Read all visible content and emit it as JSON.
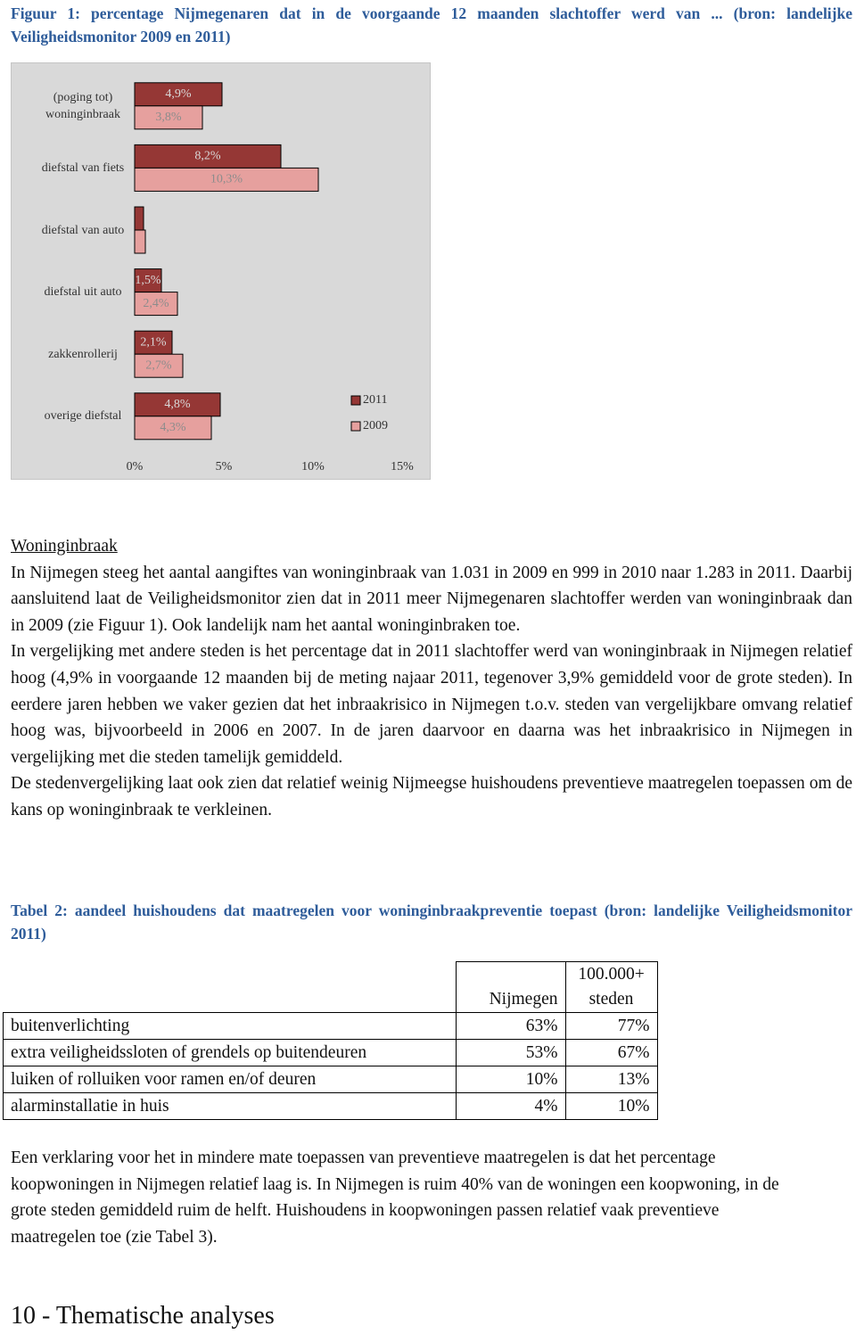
{
  "figure_caption": "Figuur 1: percentage Nijmegenaren dat in de voorgaande 12 maanden slachtoffer werd van ... (bron: landelijke Veiligheidsmonitor 2009 en 2011)",
  "chart_data": {
    "type": "bar",
    "orientation": "horizontal",
    "categories": [
      "(poging tot) woninginbraak",
      "diefstal van fiets",
      "diefstal van auto",
      "diefstal uit auto",
      "zakkenrollerij",
      "overige diefstal"
    ],
    "series": [
      {
        "name": "2011",
        "color": "#953735",
        "values": [
          4.9,
          8.2,
          0.5,
          1.5,
          2.1,
          4.8
        ],
        "value_labels": [
          "4,9%",
          "8,2%",
          null,
          "1,5%",
          "2,1%",
          "4,8%"
        ]
      },
      {
        "name": "2009",
        "color": "#e6a09e",
        "values": [
          3.8,
          10.3,
          0.6,
          2.4,
          2.7,
          4.3
        ],
        "value_labels": [
          "3,8%",
          "10,3%",
          null,
          "2,4%",
          "2,7%",
          "4,3%"
        ]
      }
    ],
    "xlim": [
      0,
      16
    ],
    "xticks": [
      {
        "value": 0,
        "label": "0%"
      },
      {
        "value": 5,
        "label": "5%"
      },
      {
        "value": 10,
        "label": "10%"
      },
      {
        "value": 15,
        "label": "15%"
      }
    ],
    "grid": false,
    "legend": "right"
  },
  "section": {
    "heading": "Woninginbraak",
    "paragraphs": [
      "In Nijmegen steeg het aantal aangiftes van woninginbraak van 1.031 in 2009 en 999 in 2010 naar 1.283 in 2011. Daarbij aansluitend laat de Veiligheidsmonitor zien dat in 2011 meer Nijmegenaren slachtoffer werden van woninginbraak dan in 2009 (zie Figuur 1). Ook landelijk nam het aantal woninginbraken toe.",
      "In vergelijking met andere steden is het percentage dat in 2011 slachtoffer werd van woninginbraak in Nijmegen relatief hoog (4,9% in voorgaande 12 maanden bij de meting najaar 2011, tegenover 3,9% gemiddeld voor de grote steden). In eerdere jaren hebben we vaker gezien dat het inbraakrisico in Nijmegen t.o.v. steden van vergelijkbare omvang relatief hoog was, bijvoorbeeld in 2006 en 2007. In de jaren daarvoor en daarna was het inbraakrisico in Nijmegen in vergelijking met die steden tamelijk gemiddeld.",
      "De stedenvergelijking laat ook zien dat relatief weinig Nijmeegse huishoudens preventieve maatregelen toepassen om de kans op woninginbraak te verkleinen."
    ]
  },
  "table": {
    "caption": "Tabel 2: aandeel huishoudens dat maatregelen voor woninginbraakpreventie toepast (bron: landelijke Veiligheidsmonitor 2011)",
    "header": [
      "Nijmegen",
      "100.000+ steden"
    ],
    "rows": [
      [
        "buitenverlichting",
        "63%",
        "77%"
      ],
      [
        "extra veiligheidssloten of grendels op buitendeuren",
        "53%",
        "67%"
      ],
      [
        "luiken of rolluiken voor ramen en/of deuren",
        "10%",
        "13%"
      ],
      [
        "alarminstallatie in huis",
        "4%",
        "10%"
      ]
    ]
  },
  "closing_paragraph": "Een verklaring voor het in mindere mate toepassen van preventieve maatregelen is dat het percentage koopwoningen in Nijmegen relatief laag is. In Nijmegen is ruim 40% van de woningen een koopwoning, in de grote steden gemiddeld ruim de helft. Huishoudens in koopwoningen passen relatief vaak preventieve maatregelen toe (zie Tabel 3).",
  "footer": "10 - Thematische analyses"
}
